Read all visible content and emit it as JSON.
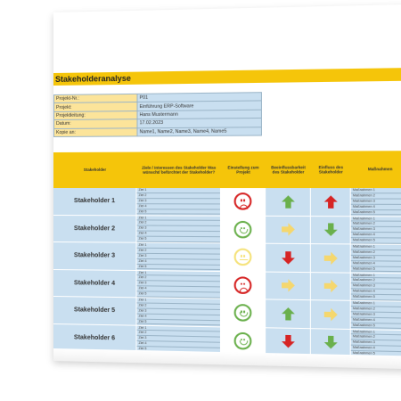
{
  "title": "Stakeholderanalyse",
  "project_info": [
    {
      "label": "Projekt-Nr.:",
      "value": "P01"
    },
    {
      "label": "Projekt:",
      "value": "Einführung ERP-Software"
    },
    {
      "label": "Projektleitung:",
      "value": "Hans Mustermann"
    },
    {
      "label": "Datum:",
      "value": "17.02.2023"
    },
    {
      "label": "Kopie an:",
      "value": "Name1, Name2, Name3, Name4, Name5"
    }
  ],
  "columns": {
    "stakeholder": "Stakeholder",
    "goals": "Ziele / Interessen des Stakeholder Was wünscht/ befürchtet der Stakeholder?",
    "attitude": "Einstellung zum Projekt",
    "influence_by": "Beeinflussbarkeit des Stakeholder",
    "influence_of": "Einfluss des Stakeholder",
    "measures": "Maßnahmen"
  },
  "goal_labels": [
    "Ziel 1",
    "Ziel 2",
    "Ziel 3",
    "Ziel 4",
    "Ziel 5"
  ],
  "measure_labels": [
    "Maßnahmen 1",
    "Maßnahmen 2",
    "Maßnahmen 3",
    "Maßnahmen 4",
    "Maßnahmen 5"
  ],
  "stakeholders": [
    {
      "name": "Stakeholder 1",
      "attitude": "sad",
      "influenceability": "up-green",
      "influence": "up-red"
    },
    {
      "name": "Stakeholder 2",
      "attitude": "happy",
      "influenceability": "right-yellow",
      "influence": "down-green"
    },
    {
      "name": "Stakeholder 3",
      "attitude": "neutral",
      "influenceability": "down-red",
      "influence": "right-yellow"
    },
    {
      "name": "Stakeholder 4",
      "attitude": "sad",
      "influenceability": "right-yellow",
      "influence": "right-yellow"
    },
    {
      "name": "Stakeholder 5",
      "attitude": "happy",
      "influenceability": "up-green",
      "influence": "right-yellow"
    },
    {
      "name": "Stakeholder 6",
      "attitude": "happy",
      "influenceability": "down-red",
      "influence": "down-green"
    }
  ],
  "colors": {
    "header": "#f5c50a",
    "cell_blue": "#c9dff0",
    "label_yellow": "#fce49a",
    "green": "#6ab04c",
    "red": "#d62424",
    "yellow": "#f5d76e"
  }
}
